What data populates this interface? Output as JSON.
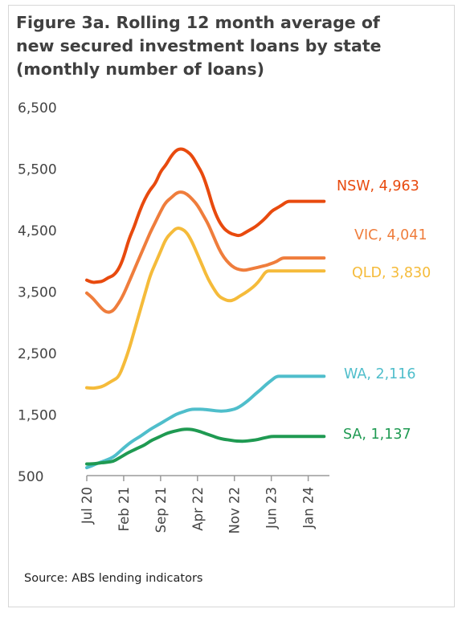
{
  "figure": {
    "title_lines": [
      "Figure 3a. Rolling 12 month average of",
      "new secured investment loans by state",
      "(monthly number of loans)"
    ],
    "source": "Source: ABS lending indicators"
  },
  "chart_data": {
    "type": "line",
    "title": "Figure 3a. Rolling 12 month average of new secured investment loans by state (monthly number of loans)",
    "xlabel": "",
    "ylabel": "",
    "ylim": [
      500,
      6500
    ],
    "yticks": [
      500,
      1500,
      2500,
      3500,
      4500,
      5500,
      6500
    ],
    "ytick_labels": [
      "500",
      "1,500",
      "2,500",
      "3,500",
      "4,500",
      "5,500",
      "6,500"
    ],
    "x_start": "Jul 20",
    "x_count": 47,
    "xticks": [
      {
        "label": "Jul 20",
        "index": 0
      },
      {
        "label": "Feb 21",
        "index": 7
      },
      {
        "label": "Sep 21",
        "index": 14
      },
      {
        "label": "Apr 22",
        "index": 21
      },
      {
        "label": "Nov 22",
        "index": 28
      },
      {
        "label": "Jun 23",
        "index": 35
      },
      {
        "label": "Jan 24",
        "index": 42
      }
    ],
    "grid": false,
    "legend": "end-of-line labels",
    "series": [
      {
        "name": "NSW",
        "end_label": "4,963",
        "color": "#e84a0e",
        "values": [
          3680,
          3640,
          3650,
          3660,
          3720,
          3750,
          3850,
          4050,
          4350,
          4550,
          4800,
          5000,
          5150,
          5250,
          5450,
          5550,
          5700,
          5800,
          5820,
          5780,
          5700,
          5550,
          5400,
          5150,
          4850,
          4650,
          4520,
          4450,
          4420,
          4400,
          4450,
          4500,
          4550,
          4620,
          4700,
          4800,
          4850,
          4900,
          4963,
          4963,
          4963,
          4963,
          4963,
          4963,
          4963,
          4963,
          4963
        ]
      },
      {
        "name": "VIC",
        "end_label": "4,041",
        "color": "#ef7d3c",
        "values": [
          3470,
          3400,
          3300,
          3200,
          3150,
          3180,
          3300,
          3450,
          3650,
          3850,
          4050,
          4250,
          4450,
          4620,
          4800,
          4950,
          5020,
          5100,
          5120,
          5080,
          5000,
          4900,
          4750,
          4600,
          4400,
          4200,
          4050,
          3950,
          3880,
          3850,
          3840,
          3860,
          3880,
          3900,
          3920,
          3950,
          3980,
          4041,
          4041,
          4041,
          4041,
          4041,
          4041,
          4041,
          4041,
          4041,
          4041
        ]
      },
      {
        "name": "QLD",
        "end_label": "3,830",
        "color": "#f5bb3a",
        "values": [
          1930,
          1920,
          1930,
          1950,
          2000,
          2050,
          2100,
          2300,
          2550,
          2850,
          3150,
          3450,
          3750,
          3950,
          4150,
          4350,
          4450,
          4530,
          4520,
          4450,
          4300,
          4100,
          3900,
          3700,
          3550,
          3420,
          3370,
          3340,
          3360,
          3420,
          3470,
          3530,
          3600,
          3700,
          3830,
          3830,
          3830,
          3830,
          3830,
          3830,
          3830,
          3830,
          3830,
          3830,
          3830,
          3830,
          3830
        ]
      },
      {
        "name": "WA",
        "end_label": "2,116",
        "color": "#4fbecb",
        "values": [
          630,
          660,
          700,
          730,
          760,
          800,
          870,
          950,
          1020,
          1080,
          1130,
          1190,
          1250,
          1300,
          1350,
          1400,
          1450,
          1500,
          1530,
          1560,
          1580,
          1580,
          1580,
          1570,
          1560,
          1550,
          1550,
          1560,
          1580,
          1620,
          1680,
          1750,
          1830,
          1900,
          1980,
          2050,
          2116,
          2116,
          2116,
          2116,
          2116,
          2116,
          2116,
          2116,
          2116,
          2116,
          2116
        ]
      },
      {
        "name": "SA",
        "end_label": "1,137",
        "color": "#1f9a52",
        "values": [
          690,
          690,
          700,
          710,
          720,
          730,
          780,
          830,
          880,
          920,
          960,
          1000,
          1060,
          1100,
          1140,
          1180,
          1210,
          1230,
          1250,
          1255,
          1250,
          1230,
          1200,
          1170,
          1140,
          1110,
          1090,
          1080,
          1065,
          1060,
          1060,
          1070,
          1080,
          1100,
          1120,
          1137,
          1137,
          1137,
          1137,
          1137,
          1137,
          1137,
          1137,
          1137,
          1137,
          1137,
          1137
        ]
      }
    ]
  }
}
